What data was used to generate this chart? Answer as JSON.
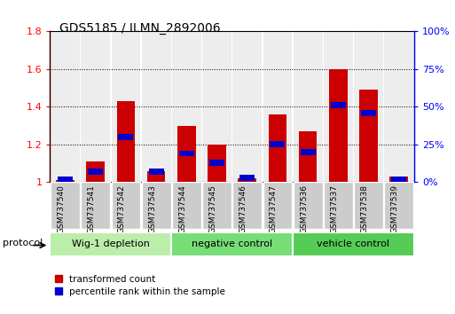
{
  "title": "GDS5185 / ILMN_2892006",
  "samples": [
    "GSM737540",
    "GSM737541",
    "GSM737542",
    "GSM737543",
    "GSM737544",
    "GSM737545",
    "GSM737546",
    "GSM737547",
    "GSM737536",
    "GSM737537",
    "GSM737538",
    "GSM737539"
  ],
  "red_values": [
    1.01,
    1.11,
    1.43,
    1.06,
    1.3,
    1.2,
    1.02,
    1.36,
    1.27,
    1.6,
    1.49,
    1.03
  ],
  "blue_values_pct": [
    0.02,
    0.07,
    0.3,
    0.07,
    0.19,
    0.13,
    0.03,
    0.25,
    0.2,
    0.51,
    0.46,
    0.02
  ],
  "groups": [
    {
      "label": "Wig-1 depletion",
      "start": 0,
      "end": 3,
      "color": "#bbeeaa"
    },
    {
      "label": "negative control",
      "start": 4,
      "end": 7,
      "color": "#77dd77"
    },
    {
      "label": "vehicle control",
      "start": 8,
      "end": 11,
      "color": "#55cc55"
    }
  ],
  "ylim_left": [
    1.0,
    1.8
  ],
  "ylim_right": [
    0.0,
    1.0
  ],
  "yticks_left": [
    1.0,
    1.2,
    1.4,
    1.6,
    1.8
  ],
  "yticks_right": [
    0.0,
    0.25,
    0.5,
    0.75,
    1.0
  ],
  "ytick_labels_left": [
    "1",
    "1.2",
    "1.4",
    "1.6",
    "1.8"
  ],
  "ytick_labels_right": [
    "0%",
    "25%",
    "50%",
    "75%",
    "100%"
  ],
  "red_color": "#cc0000",
  "blue_color": "#0000cc",
  "bar_width": 0.6,
  "blue_bar_width": 0.5,
  "legend_red": "transformed count",
  "legend_blue": "percentile rank within the sample",
  "protocol_label": "protocol"
}
